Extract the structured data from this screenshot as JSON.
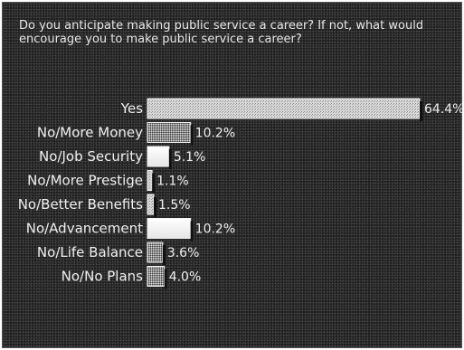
{
  "question": "Do you anticipate making public service a career? If not, what would encourage you to make public service a career?",
  "chart_data": {
    "type": "bar",
    "orientation": "horizontal",
    "title": "Do you anticipate making public service a career? If not, what would encourage you to make public service a career?",
    "categories": [
      "Yes",
      "No/More Money",
      "No/Job Security",
      "No/More Prestige",
      "No/Better Benefits",
      "No/Advancement",
      "No/Life Balance",
      "No/No Plans"
    ],
    "values": [
      64.4,
      10.2,
      5.1,
      1.1,
      1.5,
      10.2,
      3.6,
      4.0
    ],
    "value_labels": [
      "64.4%",
      "10.2%",
      "5.1%",
      "1.1%",
      "1.5%",
      "10.2%",
      "3.6%",
      "4.0%"
    ],
    "bar_styles": [
      "light-stipple",
      "dark-stipple",
      "white",
      "light-stipple",
      "light-stipple",
      "white",
      "dark-stipple",
      "dark-stipple"
    ],
    "xlim": [
      0,
      64.4
    ],
    "grid": false,
    "legend": "none"
  }
}
